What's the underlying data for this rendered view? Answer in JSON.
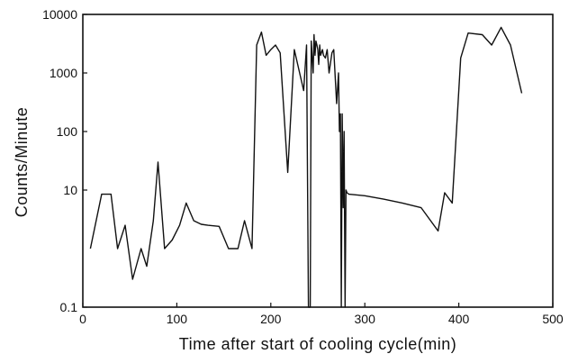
{
  "chart_data": {
    "type": "line",
    "title": "",
    "xlabel": "Time after start of cooling cycle(min)",
    "ylabel": "Counts/Minute",
    "xlim": [
      0,
      500
    ],
    "ylim": [
      0.1,
      10000
    ],
    "yscale": "log",
    "grid": false,
    "x_ticks": [
      0,
      100,
      200,
      300,
      400,
      500
    ],
    "x_tick_labels": [
      "0",
      "100",
      "200",
      "300",
      "400",
      "500"
    ],
    "y_ticks": [
      0.1,
      10,
      100,
      1000,
      10000
    ],
    "y_tick_labels": [
      "0.1",
      "10",
      "100",
      "1000",
      "10000"
    ],
    "series": [
      {
        "x": [
          8,
          20,
          30,
          37,
          45,
          53,
          62,
          68,
          75,
          80,
          87,
          95,
          103,
          110,
          118,
          126,
          133,
          145,
          155,
          165,
          172,
          180,
          185,
          190,
          195,
          200,
          205,
          210,
          218,
          225,
          235,
          238,
          240,
          242,
          243,
          245,
          246,
          247,
          248,
          249,
          250,
          251,
          252,
          253,
          255,
          256,
          258,
          260,
          262,
          265,
          267,
          270,
          272,
          273,
          274,
          275,
          276,
          277,
          278,
          279,
          280,
          281,
          283,
          300,
          320,
          340,
          360,
          378,
          385,
          393,
          402,
          410,
          425,
          435,
          445,
          455,
          467
        ],
        "y": [
          1,
          8.5,
          8.5,
          1,
          2.5,
          0.3,
          1,
          0.5,
          3,
          30,
          1,
          1.4,
          2.5,
          6,
          3,
          2.6,
          2.5,
          2.4,
          1,
          1,
          3,
          1,
          3000,
          5000,
          2000,
          2500,
          3000,
          2200,
          20,
          2500,
          500,
          3000,
          0.01,
          0.01,
          3500,
          1000,
          4500,
          2000,
          3500,
          3000,
          2500,
          1400,
          3000,
          2000,
          2500,
          2000,
          1800,
          2500,
          1000,
          2200,
          2500,
          300,
          1000,
          100,
          200,
          0.01,
          200,
          5,
          100,
          0.01,
          10,
          9,
          8.5,
          8,
          7,
          6,
          5,
          2,
          9,
          6,
          1800,
          4800,
          4500,
          3000,
          6000,
          3000,
          450
        ]
      }
    ]
  }
}
